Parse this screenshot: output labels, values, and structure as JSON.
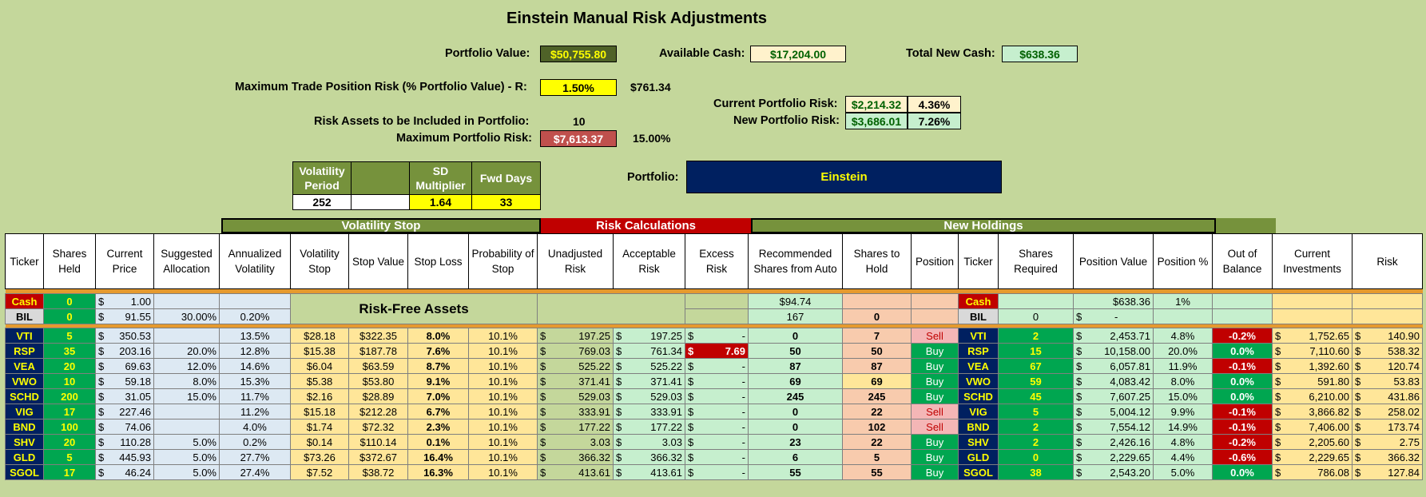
{
  "title": "Einstein Manual Risk Adjustments",
  "summary": {
    "portfolio_value_label": "Portfolio Value:",
    "portfolio_value": "$50,755.80",
    "available_cash_label": "Available Cash:",
    "available_cash": "$17,204.00",
    "total_new_cash_label": "Total New Cash:",
    "total_new_cash": "$638.36",
    "max_trade_risk_label": "Maximum Trade Position Risk (% Portfolio Value) - R:",
    "max_trade_risk_pct": "1.50%",
    "max_trade_risk_amt": "$761.34",
    "current_risk_label": "Current Portfolio Risk:",
    "current_risk_amt": "$2,214.32",
    "current_risk_pct": "4.36%",
    "new_risk_label": "New Portfolio Risk:",
    "new_risk_amt": "$3,686.01",
    "new_risk_pct": "7.26%",
    "risk_assets_label": "Risk Assets to be Included in Portfolio:",
    "risk_assets_count": "10",
    "max_portfolio_risk_label": "Maximum Portfolio Risk:",
    "max_portfolio_risk_amt": "$7,613.37",
    "max_portfolio_risk_pct": "15.00%",
    "portfolio_label": "Portfolio:",
    "portfolio_name": "Einstein"
  },
  "params": {
    "vol_period_label": "Volatility Period",
    "vol_period": "252",
    "sd_label": "SD Multiplier",
    "sd": "1.64",
    "fwd_label": "Fwd Days",
    "fwd": "33"
  },
  "bands": {
    "volatility_stop": "Volatility Stop",
    "risk_calc": "Risk Calculations",
    "new_holdings": "New Holdings"
  },
  "headers": [
    "Ticker",
    "Shares Held",
    "Current Price",
    "Suggested Allocation",
    "Annualized Volatility",
    "Volatility Stop",
    "Stop Value",
    "Stop Loss",
    "Probability of Stop",
    "Unadjusted Risk",
    "Acceptable Risk",
    "Excess Risk",
    "Recommended Shares from Auto",
    "Shares to Hold",
    "Position",
    "Ticker",
    "Shares Required",
    "Position Value",
    "Position %",
    "Out of Balance",
    "Current Investments",
    "Risk"
  ],
  "risk_free_label": "Risk-Free Assets",
  "cash_row": {
    "ticker": "Cash",
    "shares": "0",
    "price": "1.00",
    "rec": "$94.74",
    "ticker2": "Cash",
    "pos_value": "$638.36",
    "pos_pct": "1%"
  },
  "bil_row": {
    "ticker": "BIL",
    "shares": "0",
    "price": "91.55",
    "alloc": "30.00%",
    "vol": "0.20%",
    "rec": "167",
    "hold": "0",
    "ticker2": "BIL",
    "req": "0",
    "pos_value": "-"
  },
  "rows": [
    {
      "t": "VTI",
      "sh": "5",
      "pr": "350.53",
      "al": "",
      "vo": "13.5%",
      "vs": "$28.18",
      "sv": "$322.35",
      "sl": "8.0%",
      "ps": "10.1%",
      "ur": "197.25",
      "ar": "197.25",
      "er": "-",
      "rc": "0",
      "hd": "7",
      "po": "Sell",
      "rq": "2",
      "pv": "2,453.71",
      "pp": "4.8%",
      "ob": "-0.2%",
      "ci": "1,752.65",
      "rk": "140.90"
    },
    {
      "t": "RSP",
      "sh": "35",
      "pr": "203.16",
      "al": "20.0%",
      "vo": "12.8%",
      "vs": "$15.38",
      "sv": "$187.78",
      "sl": "7.6%",
      "ps": "10.1%",
      "ur": "769.03",
      "ar": "761.34",
      "er": "7.69",
      "rc": "50",
      "hd": "50",
      "po": "Buy",
      "rq": "15",
      "pv": "10,158.00",
      "pp": "20.0%",
      "ob": "0.0%",
      "ci": "7,110.60",
      "rk": "538.32"
    },
    {
      "t": "VEA",
      "sh": "20",
      "pr": "69.63",
      "al": "12.0%",
      "vo": "14.6%",
      "vs": "$6.04",
      "sv": "$63.59",
      "sl": "8.7%",
      "ps": "10.1%",
      "ur": "525.22",
      "ar": "525.22",
      "er": "-",
      "rc": "87",
      "hd": "87",
      "po": "Buy",
      "rq": "67",
      "pv": "6,057.81",
      "pp": "11.9%",
      "ob": "-0.1%",
      "ci": "1,392.60",
      "rk": "120.74"
    },
    {
      "t": "VWO",
      "sh": "10",
      "pr": "59.18",
      "al": "8.0%",
      "vo": "15.3%",
      "vs": "$5.38",
      "sv": "$53.80",
      "sl": "9.1%",
      "ps": "10.1%",
      "ur": "371.41",
      "ar": "371.41",
      "er": "-",
      "rc": "69",
      "hd": "69",
      "po": "Buy",
      "rq": "59",
      "pv": "4,083.42",
      "pp": "8.0%",
      "ob": "0.0%",
      "ci": "591.80",
      "rk": "53.83"
    },
    {
      "t": "SCHD",
      "sh": "200",
      "pr": "31.05",
      "al": "15.0%",
      "vo": "11.7%",
      "vs": "$2.16",
      "sv": "$28.89",
      "sl": "7.0%",
      "ps": "10.1%",
      "ur": "529.03",
      "ar": "529.03",
      "er": "-",
      "rc": "245",
      "hd": "245",
      "po": "Buy",
      "rq": "45",
      "pv": "7,607.25",
      "pp": "15.0%",
      "ob": "0.0%",
      "ci": "6,210.00",
      "rk": "431.86"
    },
    {
      "t": "VIG",
      "sh": "17",
      "pr": "227.46",
      "al": "",
      "vo": "11.2%",
      "vs": "$15.18",
      "sv": "$212.28",
      "sl": "6.7%",
      "ps": "10.1%",
      "ur": "333.91",
      "ar": "333.91",
      "er": "-",
      "rc": "0",
      "hd": "22",
      "po": "Sell",
      "rq": "5",
      "pv": "5,004.12",
      "pp": "9.9%",
      "ob": "-0.1%",
      "ci": "3,866.82",
      "rk": "258.02"
    },
    {
      "t": "BND",
      "sh": "100",
      "pr": "74.06",
      "al": "",
      "vo": "4.0%",
      "vs": "$1.74",
      "sv": "$72.32",
      "sl": "2.3%",
      "ps": "10.1%",
      "ur": "177.22",
      "ar": "177.22",
      "er": "-",
      "rc": "0",
      "hd": "102",
      "po": "Sell",
      "rq": "2",
      "pv": "7,554.12",
      "pp": "14.9%",
      "ob": "-0.1%",
      "ci": "7,406.00",
      "rk": "173.74"
    },
    {
      "t": "SHV",
      "sh": "20",
      "pr": "110.28",
      "al": "5.0%",
      "vo": "0.2%",
      "vs": "$0.14",
      "sv": "$110.14",
      "sl": "0.1%",
      "ps": "10.1%",
      "ur": "3.03",
      "ar": "3.03",
      "er": "-",
      "rc": "23",
      "hd": "22",
      "po": "Buy",
      "rq": "2",
      "pv": "2,426.16",
      "pp": "4.8%",
      "ob": "-0.2%",
      "ci": "2,205.60",
      "rk": "2.75"
    },
    {
      "t": "GLD",
      "sh": "5",
      "pr": "445.93",
      "al": "5.0%",
      "vo": "27.7%",
      "vs": "$73.26",
      "sv": "$372.67",
      "sl": "16.4%",
      "ps": "10.1%",
      "ur": "366.32",
      "ar": "366.32",
      "er": "-",
      "rc": "6",
      "hd": "5",
      "po": "Buy",
      "rq": "0",
      "pv": "2,229.65",
      "pp": "4.4%",
      "ob": "-0.6%",
      "ci": "2,229.65",
      "rk": "366.32"
    },
    {
      "t": "SGOL",
      "sh": "17",
      "pr": "46.24",
      "al": "5.0%",
      "vo": "27.4%",
      "vs": "$7.52",
      "sv": "$38.72",
      "sl": "16.3%",
      "ps": "10.1%",
      "ur": "413.61",
      "ar": "413.61",
      "er": "-",
      "rc": "55",
      "hd": "55",
      "po": "Buy",
      "rq": "38",
      "pv": "2,543.20",
      "pp": "5.0%",
      "ob": "0.0%",
      "ci": "786.08",
      "rk": "127.84"
    }
  ]
}
